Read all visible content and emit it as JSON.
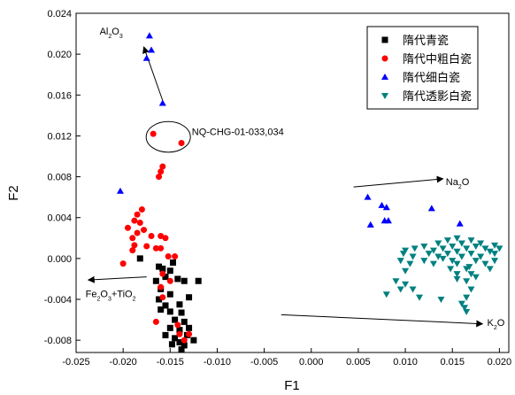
{
  "chart_data": {
    "type": "scatter",
    "xlabel": "F1",
    "ylabel": "F2",
    "xlim": [
      -0.025,
      0.021
    ],
    "ylim": [
      -0.0092,
      0.024
    ],
    "x_ticks": [
      -0.025,
      -0.02,
      -0.015,
      -0.01,
      -0.005,
      0.0,
      0.005,
      0.01,
      0.015,
      0.02
    ],
    "x_tick_labels": [
      "-0.025",
      "-0.020",
      "-0.015",
      "-0.010",
      "-0.005",
      "0.000",
      "0.005",
      "0.010",
      "0.015",
      "0.020"
    ],
    "y_ticks": [
      -0.008,
      -0.004,
      0.0,
      0.004,
      0.008,
      0.012,
      0.016,
      0.02,
      0.024
    ],
    "y_tick_labels": [
      "-0.008",
      "-0.004",
      "0.000",
      "0.004",
      "0.008",
      "0.012",
      "0.016",
      "0.020",
      "0.024"
    ],
    "grid": false,
    "legend_position": "top-right",
    "series": [
      {
        "name": "隋代青瓷",
        "marker": "square",
        "color": "#000000",
        "points": [
          [
            -0.0182,
            0.0
          ],
          [
            -0.0162,
            -0.0008
          ],
          [
            -0.0158,
            -0.001
          ],
          [
            -0.015,
            -0.0012
          ],
          [
            -0.0147,
            -0.0004
          ],
          [
            -0.0155,
            -0.0018
          ],
          [
            -0.0165,
            -0.0022
          ],
          [
            -0.0142,
            -0.002
          ],
          [
            -0.0135,
            -0.0022
          ],
          [
            -0.012,
            -0.0022
          ],
          [
            -0.016,
            -0.003
          ],
          [
            -0.015,
            -0.0035
          ],
          [
            -0.013,
            -0.0038
          ],
          [
            -0.0162,
            -0.004
          ],
          [
            -0.0155,
            -0.0046
          ],
          [
            -0.014,
            -0.0045
          ],
          [
            -0.015,
            -0.0052
          ],
          [
            -0.0138,
            -0.0053
          ],
          [
            -0.016,
            -0.005
          ],
          [
            -0.0145,
            -0.006
          ],
          [
            -0.0135,
            -0.0062
          ],
          [
            -0.013,
            -0.0068
          ],
          [
            -0.015,
            -0.0068
          ],
          [
            -0.014,
            -0.007
          ],
          [
            -0.0155,
            -0.0075
          ],
          [
            -0.0145,
            -0.0078
          ],
          [
            -0.0132,
            -0.0075
          ],
          [
            -0.014,
            -0.0082
          ],
          [
            -0.0135,
            -0.0085
          ],
          [
            -0.0138,
            -0.0089
          ],
          [
            -0.0148,
            -0.0084
          ],
          [
            -0.0125,
            -0.008
          ]
        ]
      },
      {
        "name": "隋代中粗白瓷",
        "marker": "circle",
        "color": "#ff0000",
        "points": [
          [
            -0.0168,
            0.0122
          ],
          [
            -0.0138,
            0.0113
          ],
          [
            -0.0158,
            0.009
          ],
          [
            -0.016,
            0.0085
          ],
          [
            -0.0162,
            0.008
          ],
          [
            -0.018,
            0.0048
          ],
          [
            -0.0185,
            0.0043
          ],
          [
            -0.0188,
            0.0037
          ],
          [
            -0.0182,
            0.0035
          ],
          [
            -0.0178,
            0.0028
          ],
          [
            -0.0195,
            0.003
          ],
          [
            -0.0185,
            0.0025
          ],
          [
            -0.017,
            0.0022
          ],
          [
            -0.019,
            0.002
          ],
          [
            -0.016,
            0.0022
          ],
          [
            -0.0155,
            0.002
          ],
          [
            -0.0188,
            0.0013
          ],
          [
            -0.0175,
            0.0012
          ],
          [
            -0.0165,
            0.001
          ],
          [
            -0.016,
            0.001
          ],
          [
            -0.019,
            0.0008
          ],
          [
            -0.0152,
            0.0002
          ],
          [
            -0.0145,
            0.0002
          ],
          [
            -0.02,
            -0.0005
          ],
          [
            -0.0158,
            -0.0015
          ],
          [
            -0.016,
            -0.0028
          ],
          [
            -0.015,
            -0.0022
          ],
          [
            -0.0158,
            -0.0038
          ],
          [
            -0.0165,
            -0.0062
          ],
          [
            -0.0142,
            -0.0065
          ],
          [
            -0.013,
            -0.0074
          ],
          [
            -0.014,
            -0.0074
          ],
          [
            -0.0135,
            -0.008
          ]
        ]
      },
      {
        "name": "隋代细白瓷",
        "marker": "triangle-up",
        "color": "#0000ff",
        "points": [
          [
            -0.0172,
            0.0218
          ],
          [
            -0.017,
            0.0204
          ],
          [
            -0.0175,
            0.0196
          ],
          [
            -0.0158,
            0.0152
          ],
          [
            -0.0203,
            0.0066
          ],
          [
            0.006,
            0.006
          ],
          [
            0.0075,
            0.0052
          ],
          [
            0.008,
            0.005
          ],
          [
            0.0128,
            0.0049
          ],
          [
            0.0063,
            0.0033
          ],
          [
            0.0078,
            0.0037
          ],
          [
            0.0082,
            0.0037
          ],
          [
            0.0158,
            0.0034
          ]
        ]
      },
      {
        "name": "隋代透影白瓷",
        "marker": "triangle-down",
        "color": "#008080",
        "points": [
          [
            0.0155,
            0.002
          ],
          [
            0.0145,
            0.0018
          ],
          [
            0.017,
            0.0018
          ],
          [
            0.0135,
            0.0015
          ],
          [
            0.016,
            0.0015
          ],
          [
            0.018,
            0.0015
          ],
          [
            0.0195,
            0.0013
          ],
          [
            0.012,
            0.0012
          ],
          [
            0.015,
            0.0012
          ],
          [
            0.0175,
            0.0012
          ],
          [
            0.011,
            0.001
          ],
          [
            0.014,
            0.001
          ],
          [
            0.0165,
            0.001
          ],
          [
            0.0185,
            0.001
          ],
          [
            0.02,
            0.001
          ],
          [
            0.01,
            0.0008
          ],
          [
            0.013,
            0.0008
          ],
          [
            0.0155,
            0.0007
          ],
          [
            0.019,
            0.0007
          ],
          [
            0.0098,
            0.0005
          ],
          [
            0.0125,
            0.0005
          ],
          [
            0.0145,
            0.0005
          ],
          [
            0.017,
            0.0005
          ],
          [
            0.0195,
            0.0005
          ],
          [
            0.0108,
            0.0002
          ],
          [
            0.0135,
            0.0002
          ],
          [
            0.016,
            0.0002
          ],
          [
            0.018,
            0.0002
          ],
          [
            0.014,
            0.0
          ],
          [
            0.0095,
            -0.0002
          ],
          [
            0.012,
            -0.0002
          ],
          [
            0.015,
            -0.0002
          ],
          [
            0.0175,
            -0.0002
          ],
          [
            0.0195,
            -0.0002
          ],
          [
            0.0105,
            -0.0005
          ],
          [
            0.013,
            -0.0005
          ],
          [
            0.0155,
            -0.0005
          ],
          [
            0.0185,
            -0.0005
          ],
          [
            0.0168,
            -0.0008
          ],
          [
            0.0148,
            -0.001
          ],
          [
            0.0165,
            -0.001
          ],
          [
            0.019,
            -0.001
          ],
          [
            0.01,
            -0.0012
          ],
          [
            0.0155,
            -0.0015
          ],
          [
            0.017,
            -0.0015
          ],
          [
            0.0175,
            -0.0018
          ],
          [
            0.009,
            -0.0022
          ],
          [
            0.0155,
            -0.002
          ],
          [
            0.0165,
            -0.0022
          ],
          [
            0.01,
            -0.0025
          ],
          [
            0.0095,
            -0.003
          ],
          [
            0.0108,
            -0.003
          ],
          [
            0.017,
            -0.003
          ],
          [
            0.008,
            -0.0035
          ],
          [
            0.0115,
            -0.0038
          ],
          [
            0.0138,
            -0.004
          ],
          [
            0.0165,
            -0.0038
          ],
          [
            0.016,
            -0.0044
          ],
          [
            0.0163,
            -0.0048
          ],
          [
            0.0165,
            -0.0052
          ]
        ]
      }
    ],
    "annotations": [
      {
        "id": "al2o3",
        "parts": [
          [
            "Al",
            false
          ],
          [
            "2",
            true
          ],
          [
            "O",
            false
          ],
          [
            "3",
            true
          ]
        ],
        "x": -0.0225,
        "y": 0.0219,
        "arrow_from": [
          -0.0157,
          0.0152
        ],
        "arrow_to": [
          -0.0178,
          0.0207
        ]
      },
      {
        "id": "nq",
        "parts": [
          [
            "NQ-CHG-01-033,034",
            false
          ]
        ],
        "x": -0.0127,
        "y": 0.0121,
        "ellipse_center": [
          -0.0152,
          0.0119
        ],
        "ellipse_radius": [
          0.00235,
          0.0015
        ]
      },
      {
        "id": "na2o",
        "parts": [
          [
            "Na",
            false
          ],
          [
            "2",
            true
          ],
          [
            "O",
            false
          ]
        ],
        "x": 0.0143,
        "y": 0.0072,
        "arrow_from": [
          0.0045,
          0.007
        ],
        "arrow_to": [
          0.014,
          0.0078
        ]
      },
      {
        "id": "fe2o3",
        "parts": [
          [
            "Fe",
            false
          ],
          [
            "2",
            true
          ],
          [
            "O",
            false
          ],
          [
            "3",
            true
          ],
          [
            "+TiO",
            false
          ],
          [
            "2",
            true
          ]
        ],
        "x": -0.024,
        "y": -0.0038,
        "arrow_from": [
          -0.0175,
          -0.0018
        ],
        "arrow_to": [
          -0.0237,
          -0.0021
        ]
      },
      {
        "id": "k2o",
        "parts": [
          [
            "K",
            false
          ],
          [
            "2",
            true
          ],
          [
            "O",
            false
          ]
        ],
        "x": 0.0187,
        "y": -0.0066,
        "arrow_from": [
          -0.0032,
          -0.0055
        ],
        "arrow_to": [
          0.0182,
          -0.0064
        ]
      }
    ]
  }
}
